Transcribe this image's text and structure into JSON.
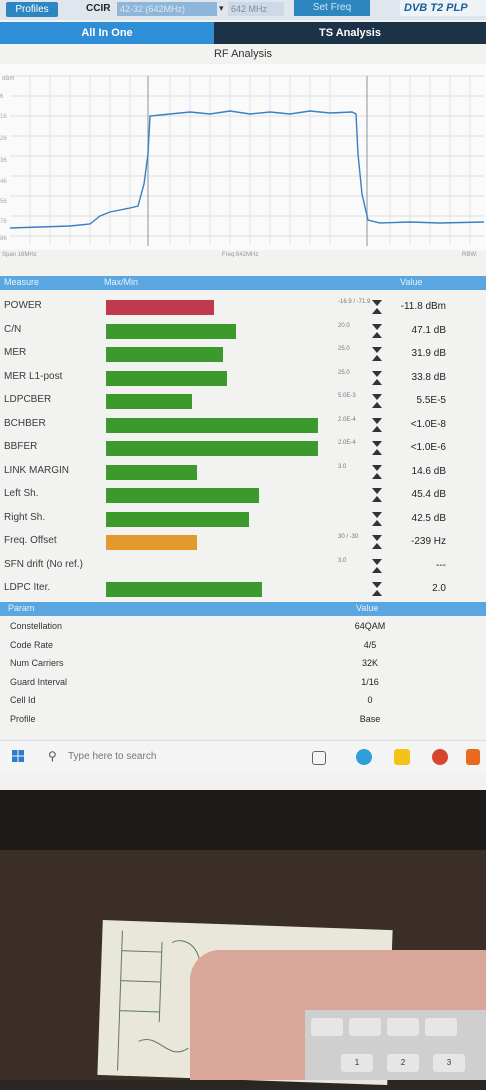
{
  "topbar": {
    "profiles": "Profiles",
    "standard": "CCIR",
    "channel": "42-32 (642MHz)",
    "frequency": "642 MHz",
    "set_freq": "Set Freq",
    "brand": "DVB T2 PLP"
  },
  "tabs": [
    {
      "label": "All In One"
    },
    {
      "label": "TS Analysis"
    }
  ],
  "rf_title": "RF Analysis",
  "spectrum": {
    "unit": "dBm",
    "y_labels": [
      "6",
      "16",
      "26",
      "36",
      "46",
      "56",
      "76",
      "86"
    ],
    "span": "Span 16MHz",
    "freq": "Freq:642MHz",
    "rbw": "RBW:"
  },
  "measure_header": {
    "measure": "Measure",
    "maxmin": "Max/Min",
    "value": "Value"
  },
  "measures": [
    {
      "label": "POWER",
      "fill": 0.5,
      "color": "#c0394f",
      "limit": "-16.9 / -71.9",
      "value": "-11.8 dBm"
    },
    {
      "label": "C/N",
      "fill": 0.6,
      "color": "#3c9a2c",
      "limit": "20.0",
      "value": "47.1 dB"
    },
    {
      "label": "MER",
      "fill": 0.54,
      "color": "#3c9a2c",
      "limit": "25.0",
      "value": "31.9 dB"
    },
    {
      "label": "MER L1-post",
      "fill": 0.56,
      "color": "#3c9a2c",
      "limit": "25.0",
      "value": "33.8 dB"
    },
    {
      "label": "LDPCBER",
      "fill": 0.4,
      "color": "#3c9a2c",
      "limit": "5.0E-3",
      "value": "5.5E-5"
    },
    {
      "label": "BCHBER",
      "fill": 0.98,
      "color": "#3c9a2c",
      "limit": "2.0E-4",
      "value": "<1.0E-8"
    },
    {
      "label": "BBFER",
      "fill": 0.98,
      "color": "#3c9a2c",
      "limit": "2.0E-4",
      "value": "<1.0E-6"
    },
    {
      "label": "LINK MARGIN",
      "fill": 0.42,
      "color": "#3c9a2c",
      "limit": "3.0",
      "value": "14.6 dB"
    },
    {
      "label": "Left Sh.",
      "fill": 0.71,
      "color": "#3c9a2c",
      "limit": "",
      "value": "45.4 dB"
    },
    {
      "label": "Right Sh.",
      "fill": 0.66,
      "color": "#3c9a2c",
      "limit": "",
      "value": "42.5 dB"
    },
    {
      "label": "Freq. Offset",
      "fill": 0.42,
      "color": "#e29a2e",
      "limit": "30 / -30",
      "value": "-239 Hz"
    },
    {
      "label": "SFN drift (No ref.)",
      "fill": 0.0,
      "color": "#3c9a2c",
      "limit": "3.0",
      "value": "---"
    },
    {
      "label": "LDPC Iter.",
      "fill": 0.72,
      "color": "#3c9a2c",
      "limit": "",
      "value": "2.0"
    }
  ],
  "param_header": {
    "param": "Param",
    "value": "Value"
  },
  "params": [
    {
      "label": "Constellation",
      "value": "64QAM"
    },
    {
      "label": "Code Rate",
      "value": "4/5"
    },
    {
      "label": "Num Carriers",
      "value": "32K"
    },
    {
      "label": "Guard Interval",
      "value": "1/16"
    },
    {
      "label": "Cell Id",
      "value": "0"
    },
    {
      "label": "Profile",
      "value": "Base"
    }
  ],
  "taskbar": {
    "search_placeholder": "Type here to search"
  },
  "keyboard": {
    "keys": [
      "1",
      "2",
      "3"
    ]
  }
}
